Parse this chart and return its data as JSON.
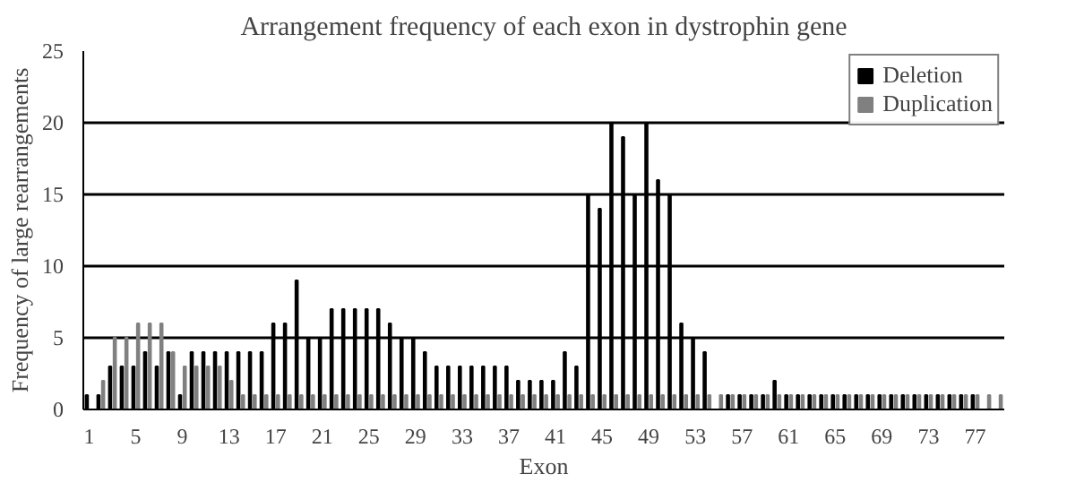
{
  "chart_data": {
    "type": "bar",
    "title": "Arrangement frequency of each exon in dystrophin gene",
    "xlabel": "Exon",
    "ylabel": "Frequency of large rearrangements",
    "x": [
      1,
      2,
      3,
      4,
      5,
      6,
      7,
      8,
      9,
      10,
      11,
      12,
      13,
      14,
      15,
      16,
      17,
      18,
      19,
      20,
      21,
      22,
      23,
      24,
      25,
      26,
      27,
      28,
      29,
      30,
      31,
      32,
      33,
      34,
      35,
      36,
      37,
      38,
      39,
      40,
      41,
      42,
      43,
      44,
      45,
      46,
      47,
      48,
      49,
      50,
      51,
      52,
      53,
      54,
      55,
      56,
      57,
      58,
      59,
      60,
      61,
      62,
      63,
      64,
      65,
      66,
      67,
      68,
      69,
      70,
      71,
      72,
      73,
      74,
      75,
      76,
      77,
      78,
      79
    ],
    "series": [
      {
        "name": "Deletion",
        "color": "#000000",
        "values": [
          1,
          1,
          3,
          3,
          3,
          4,
          3,
          4,
          1,
          4,
          4,
          4,
          4,
          4,
          4,
          4,
          6,
          6,
          9,
          5,
          5,
          7,
          7,
          7,
          7,
          7,
          6,
          5,
          5,
          4,
          3,
          3,
          3,
          3,
          3,
          3,
          3,
          2,
          2,
          2,
          2,
          4,
          3,
          15,
          14,
          20,
          19,
          15,
          20,
          16,
          15,
          6,
          5,
          4,
          0,
          1,
          1,
          1,
          1,
          2,
          1,
          1,
          1,
          1,
          1,
          1,
          1,
          1,
          1,
          1,
          1,
          1,
          1,
          1,
          1,
          1,
          1,
          0,
          0
        ]
      },
      {
        "name": "Duplication",
        "color": "#808080",
        "values": [
          0,
          2,
          5,
          5,
          6,
          6,
          6,
          4,
          3,
          3,
          3,
          3,
          2,
          1,
          1,
          1,
          1,
          1,
          1,
          1,
          1,
          1,
          1,
          1,
          1,
          1,
          1,
          1,
          1,
          1,
          1,
          1,
          1,
          1,
          1,
          1,
          1,
          1,
          1,
          1,
          1,
          1,
          1,
          1,
          1,
          1,
          1,
          1,
          1,
          1,
          1,
          1,
          1,
          1,
          1,
          1,
          1,
          1,
          1,
          1,
          1,
          1,
          1,
          1,
          1,
          1,
          1,
          1,
          1,
          1,
          1,
          1,
          1,
          1,
          1,
          1,
          1,
          1,
          1
        ]
      }
    ],
    "xlim": [
      0.5,
      79.5
    ],
    "xticks": [
      1,
      5,
      9,
      13,
      17,
      21,
      25,
      29,
      33,
      37,
      41,
      45,
      49,
      53,
      57,
      61,
      65,
      69,
      73,
      77
    ],
    "ylim": [
      0,
      25
    ],
    "yticks": [
      0,
      5,
      10,
      15,
      20,
      25
    ],
    "grid": "y",
    "legend": "top right"
  }
}
